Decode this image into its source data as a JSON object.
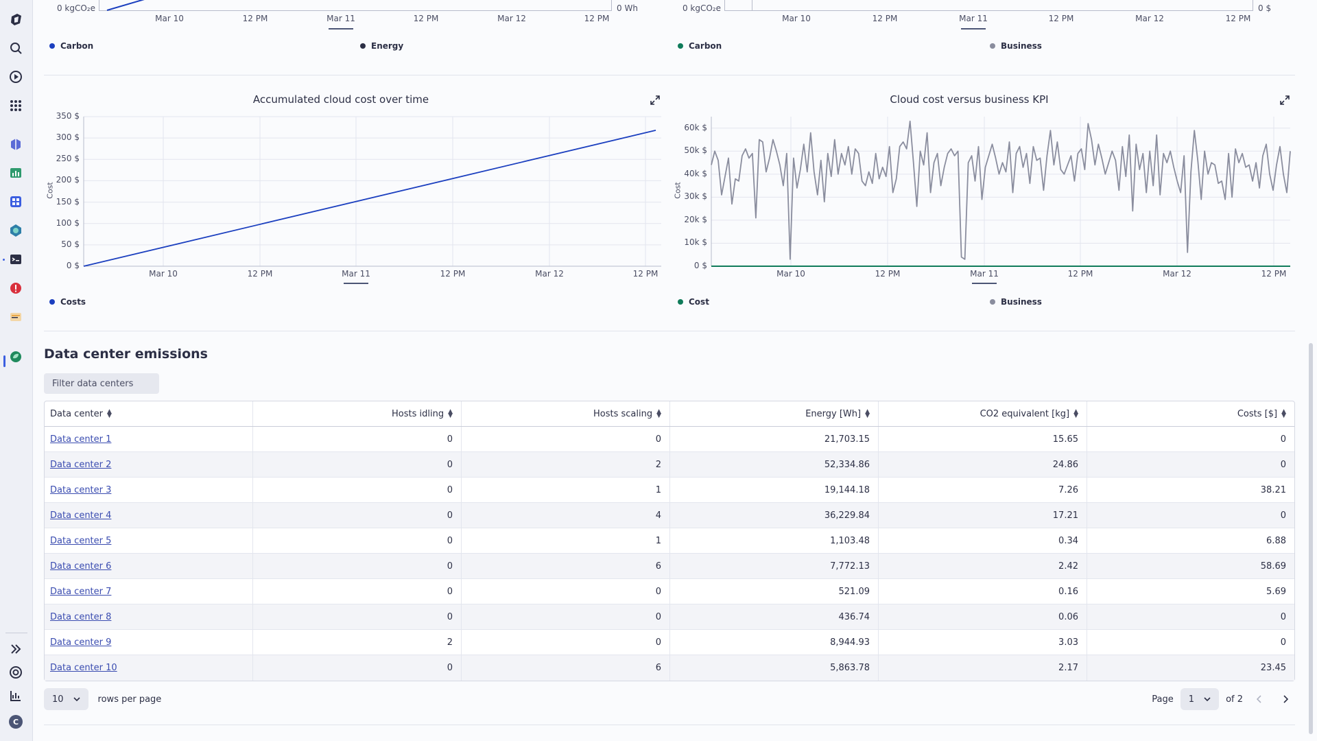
{
  "colors": {
    "accent_blue": "#1b3fbf",
    "green": "#0f7b5a",
    "gray": "#8a8d9e",
    "dark": "#2c2f45"
  },
  "sidebar": {
    "icons": [
      "dynatrace-logo-icon",
      "search-icon",
      "launcher-icon",
      "apps-grid-icon",
      "hub-icon",
      "dashboards-icon",
      "notebooks-icon",
      "kubernetes-icon",
      "terminal-icon",
      "problems-icon",
      "logs-icon",
      "carbon-app-icon",
      "expand-icon",
      "help-icon",
      "chart-icon",
      "user-icon"
    ],
    "user_initial": "C"
  },
  "top_charts": {
    "left": {
      "y_left_bottom_tick": "0 kgCO₂e",
      "y_right_bottom_tick": "0 Wh",
      "x_ticks": [
        "Mar 10",
        "12 PM",
        "Mar 11",
        "12 PM",
        "Mar 12",
        "12 PM"
      ],
      "legend": [
        {
          "name": "Carbon",
          "color": "#1b3fbf"
        },
        {
          "name": "Energy",
          "color": "#2c2f45"
        }
      ]
    },
    "right": {
      "y_left_bottom_tick": "0 kgCO₂e",
      "y_right_bottom_tick": "0 $",
      "x_ticks": [
        "Mar 10",
        "12 PM",
        "Mar 11",
        "12 PM",
        "Mar 12",
        "12 PM"
      ],
      "legend": [
        {
          "name": "Carbon",
          "color": "#0f7b5a"
        },
        {
          "name": "Business",
          "color": "#8a8d9e"
        }
      ]
    }
  },
  "chart_data": [
    {
      "type": "line",
      "title": "Accumulated cloud cost over time",
      "ylabel": "Cost",
      "y_ticks": [
        "0 $",
        "50 $",
        "100 $",
        "150 $",
        "200 $",
        "250 $",
        "300 $",
        "350 $"
      ],
      "x_ticks": [
        "Mar 10",
        "12 PM",
        "Mar 11",
        "12 PM",
        "Mar 12",
        "12 PM"
      ],
      "ylim": [
        0,
        350
      ],
      "series": [
        {
          "name": "Costs",
          "color": "#1b3fbf",
          "x": [
            "Mar 9 20:00",
            "Mar 12 12:00"
          ],
          "values": [
            0,
            318
          ]
        }
      ]
    },
    {
      "type": "line",
      "title": "Cloud cost versus business KPI",
      "ylabel": "Cost",
      "y_ticks": [
        "0 $",
        "10k $",
        "20k $",
        "30k $",
        "40k $",
        "50k $",
        "60k $"
      ],
      "x_ticks": [
        "Mar 10",
        "12 PM",
        "Mar 11",
        "12 PM",
        "Mar 12",
        "12 PM"
      ],
      "ylim": [
        0,
        65000
      ],
      "series": [
        {
          "name": "Cost",
          "color": "#0f7b5a",
          "values": [
            0,
            0,
            0,
            0,
            0,
            0,
            0,
            0,
            0,
            0
          ]
        },
        {
          "name": "Business",
          "color": "#8a8d9e",
          "values": [
            44000,
            50000,
            46000,
            31000,
            39000,
            47000,
            27000,
            38000,
            37000,
            48000,
            51000,
            47000,
            49000,
            21000,
            55000,
            54000,
            41000,
            47000,
            55000,
            50000,
            44000,
            35000,
            49000,
            3000,
            47000,
            34000,
            42000,
            53000,
            41000,
            58000,
            41000,
            31000,
            46000,
            28000,
            49000,
            39000,
            55000,
            40000,
            49000,
            44000,
            52000,
            40000,
            51000,
            49000,
            37000,
            35000,
            41000,
            36000,
            49000,
            38000,
            43000,
            39000,
            52000,
            32000,
            38000,
            52000,
            54000,
            51000,
            63000,
            45000,
            26000,
            50000,
            44000,
            58000,
            32000,
            45000,
            49000,
            35000,
            43000,
            49000,
            51000,
            48000,
            50000,
            4000,
            3000,
            45000,
            48000,
            37000,
            52000,
            29000,
            43000,
            48000,
            53000,
            47000,
            40000,
            45000,
            41000,
            54000,
            32000,
            49000,
            52000,
            43000,
            49000,
            36000,
            52000,
            46000,
            47000,
            33000,
            48000,
            59000,
            44000,
            54000,
            42000,
            40000,
            44000,
            48000,
            37000,
            49000,
            51000,
            42000,
            62000,
            55000,
            44000,
            53000,
            47000,
            40000,
            45000,
            50000,
            46000,
            33000,
            52000,
            39000,
            57000,
            24000,
            53000,
            42000,
            49000,
            32000,
            50000,
            35000,
            57000,
            31000,
            49000,
            45000,
            50000,
            43000,
            37000,
            32000,
            48000,
            6000,
            41000,
            59000,
            46000,
            29000,
            50000,
            40000,
            45000,
            44000,
            36000,
            37000,
            29000,
            49000,
            30000,
            51000,
            45000,
            49000,
            43000,
            44000,
            37000,
            45000,
            34000,
            48000,
            53000,
            40000,
            33000,
            44000,
            52000,
            40000,
            32000,
            50000
          ]
        }
      ]
    }
  ],
  "cost_legend": [
    {
      "name": "Costs",
      "color": "#1b3fbf"
    }
  ],
  "kpi_legend": [
    {
      "name": "Cost",
      "color": "#0f7b5a"
    },
    {
      "name": "Business",
      "color": "#8a8d9e"
    }
  ],
  "section": {
    "title": "Data center emissions",
    "filter_placeholder": "Filter data centers"
  },
  "table": {
    "columns": [
      "Data center",
      "Hosts idling",
      "Hosts scaling",
      "Energy [Wh]",
      "CO2 equivalent [kg]",
      "Costs [$]"
    ],
    "rows": [
      [
        "Data center 1",
        "0",
        "0",
        "21,703.15",
        "15.65",
        "0"
      ],
      [
        "Data center 2",
        "0",
        "2",
        "52,334.86",
        "24.86",
        "0"
      ],
      [
        "Data center 3",
        "0",
        "1",
        "19,144.18",
        "7.26",
        "38.21"
      ],
      [
        "Data center 4",
        "0",
        "4",
        "36,229.84",
        "17.21",
        "0"
      ],
      [
        "Data center 5",
        "0",
        "1",
        "1,103.48",
        "0.34",
        "6.88"
      ],
      [
        "Data center 6",
        "0",
        "6",
        "7,772.13",
        "2.42",
        "58.69"
      ],
      [
        "Data center 7",
        "0",
        "0",
        "521.09",
        "0.16",
        "5.69"
      ],
      [
        "Data center 8",
        "0",
        "0",
        "436.74",
        "0.06",
        "0"
      ],
      [
        "Data center 9",
        "2",
        "0",
        "8,944.93",
        "3.03",
        "0"
      ],
      [
        "Data center 10",
        "0",
        "6",
        "5,863.78",
        "2.17",
        "23.45"
      ]
    ]
  },
  "pagination": {
    "rows_per_page_value": "10",
    "rows_per_page_label": "rows per page",
    "page_label": "Page",
    "page_value": "1",
    "of_label": "of 2"
  }
}
